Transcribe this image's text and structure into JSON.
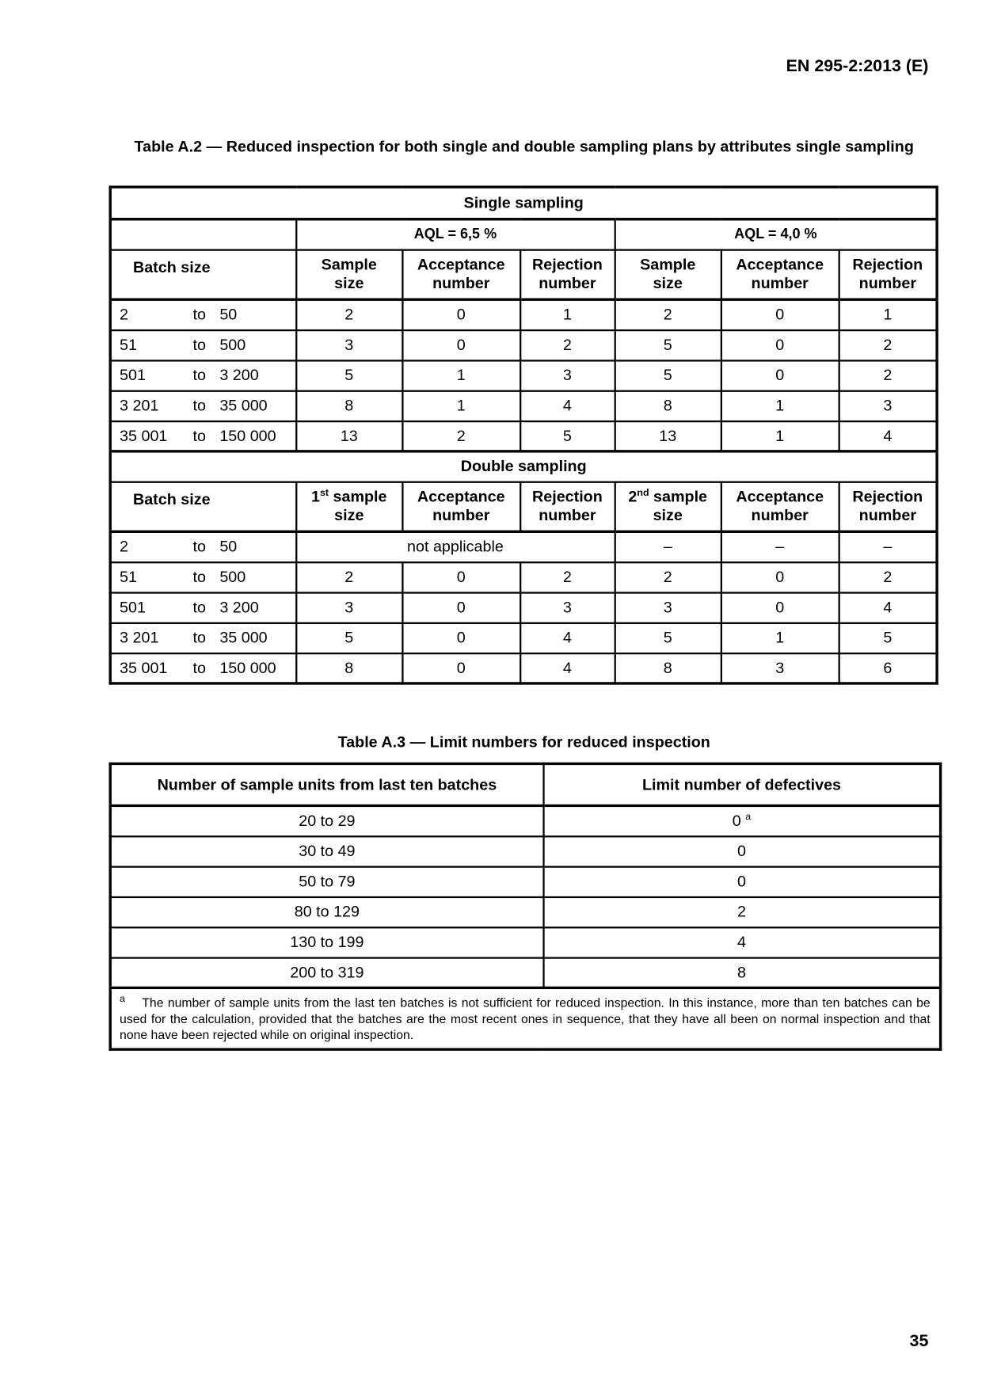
{
  "header": "EN 295-2:2013 (E)",
  "page_number": "35",
  "table_a2": {
    "caption": "Table A.2 — Reduced inspection for both single and double sampling plans by attributes single sampling",
    "single_title": "Single sampling",
    "aql1": "AQL = 6,5 %",
    "aql2": "AQL = 4,0 %",
    "batch_size": "Batch size",
    "sample": "Sample",
    "size": "size",
    "acceptance": "Acceptance",
    "rejection": "Rejection",
    "number": "number",
    "single_rows": [
      {
        "from": "2",
        "to": "to",
        "upto": "50",
        "v": [
          "2",
          "0",
          "1",
          "2",
          "0",
          "1"
        ]
      },
      {
        "from": "51",
        "to": "to",
        "upto": "500",
        "v": [
          "3",
          "0",
          "2",
          "5",
          "0",
          "2"
        ]
      },
      {
        "from": "501",
        "to": "to",
        "upto": "3 200",
        "v": [
          "5",
          "1",
          "3",
          "5",
          "0",
          "2"
        ]
      },
      {
        "from": "3 201",
        "to": "to",
        "upto": "35 000",
        "v": [
          "8",
          "1",
          "4",
          "8",
          "1",
          "3"
        ]
      },
      {
        "from": "35 001",
        "to": "to",
        "upto": "150 000",
        "v": [
          "13",
          "2",
          "5",
          "13",
          "1",
          "4"
        ]
      }
    ],
    "double_title": "Double sampling",
    "first": "1",
    "st": "st",
    "sample_word": " sample",
    "second": "2",
    "nd": "nd",
    "not_applicable": "not applicable",
    "double_rows": [
      {
        "from": "2",
        "to": "to",
        "upto": "50",
        "v": [
          "–",
          "–",
          "–"
        ]
      },
      {
        "from": "51",
        "to": "to",
        "upto": "500",
        "v": [
          "2",
          "0",
          "2",
          "2",
          "0",
          "2"
        ]
      },
      {
        "from": "501",
        "to": "to",
        "upto": "3 200",
        "v": [
          "3",
          "0",
          "3",
          "3",
          "0",
          "4"
        ]
      },
      {
        "from": "3 201",
        "to": "to",
        "upto": "35 000",
        "v": [
          "5",
          "0",
          "4",
          "5",
          "1",
          "5"
        ]
      },
      {
        "from": "35 001",
        "to": "to",
        "upto": "150 000",
        "v": [
          "8",
          "0",
          "4",
          "8",
          "3",
          "6"
        ]
      }
    ]
  },
  "table_a3": {
    "caption": "Table A.3 — Limit numbers for reduced inspection",
    "col1": "Number of sample units from last ten batches",
    "col2": "Limit number of defectives",
    "rows": [
      {
        "units": "20 to 29",
        "limit": "0",
        "note": "a"
      },
      {
        "units": "30 to 49",
        "limit": "0"
      },
      {
        "units": "50 to 79",
        "limit": "0"
      },
      {
        "units": "80 to 129",
        "limit": "2"
      },
      {
        "units": "130 to 199",
        "limit": "4"
      },
      {
        "units": "200 to 319",
        "limit": "8"
      }
    ],
    "footnote_mark": "a",
    "footnote": "The number of sample units from the last ten batches is not sufficient for reduced inspection. In this instance, more than ten batches can be used for the calculation, provided that the batches are the most recent ones in sequence, that they have all been on normal inspection and that none have been rejected while on original inspection."
  }
}
